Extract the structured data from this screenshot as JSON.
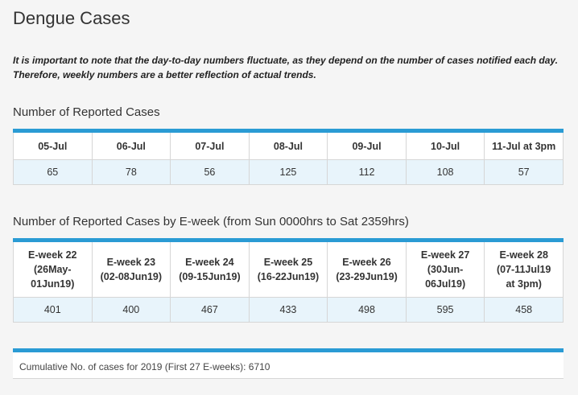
{
  "title": "Dengue Cases",
  "note": "It is important to note that the day-to-day numbers fluctuate, as they depend on the number of cases notified each day. Therefore, weekly numbers are a better reflection of actual trends.",
  "daily": {
    "title": "Number of Reported Cases",
    "headers": [
      "05-Jul",
      "06-Jul",
      "07-Jul",
      "08-Jul",
      "09-Jul",
      "10-Jul",
      "11-Jul at 3pm"
    ],
    "values": [
      "65",
      "78",
      "56",
      "125",
      "112",
      "108",
      "57"
    ]
  },
  "weekly": {
    "title": "Number of Reported Cases by E-week (from Sun 0000hrs to Sat 2359hrs)",
    "headers": [
      [
        "E-week 22",
        "(26May-",
        "01Jun19)"
      ],
      [
        "E-week 23",
        "(02-08Jun19)"
      ],
      [
        "E-week 24",
        "(09-15Jun19)"
      ],
      [
        "E-week 25",
        "(16-22Jun19)"
      ],
      [
        "E-week 26",
        "(23-29Jun19)"
      ],
      [
        "E-week 27",
        "(30Jun-",
        "06Jul19)"
      ],
      [
        "E-week 28",
        "(07-11Jul19",
        "at 3pm)"
      ]
    ],
    "values": [
      "401",
      "400",
      "467",
      "433",
      "498",
      "595",
      "458"
    ]
  },
  "cumulative": "Cumulative No. of cases for 2019 (First 27 E-weeks): 6710",
  "colors": {
    "accent": "#2a9bd4",
    "cell_bg": "#e8f4fb",
    "page_bg": "#f5f5f5"
  }
}
